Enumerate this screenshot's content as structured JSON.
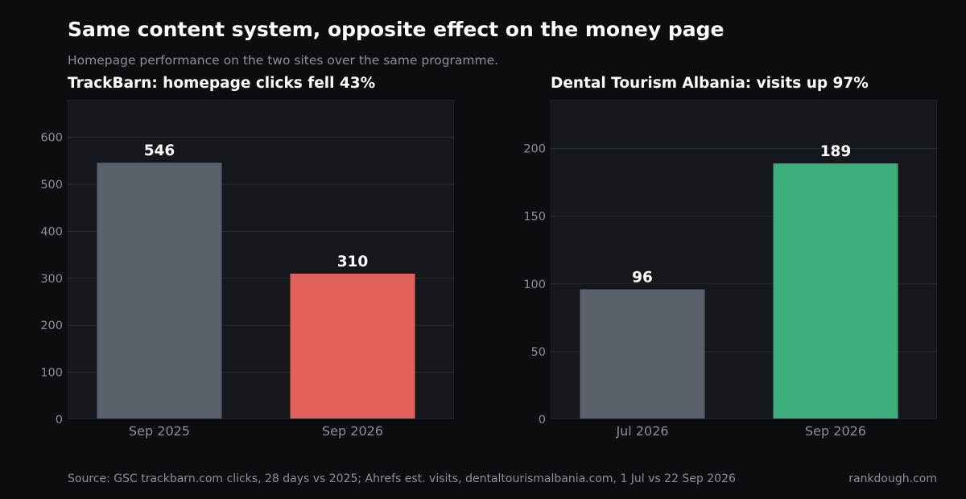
{
  "header": {
    "title": "Same content system, opposite effect on the money page",
    "subtitle": "Homepage performance on the two sites over the same programme."
  },
  "footer": {
    "source": "Source: GSC trackbarn.com clicks, 28 days vs 2025; Ahrefs est. visits, dentaltourismalbania.com, 1 Jul vs 22 Sep 2026",
    "brand": "rankdough.com"
  },
  "colors": {
    "background": "#0c0d10",
    "plot_bg": "#14171c",
    "grid": "#262a31",
    "neutral_bar": "#5a616b",
    "decline_bar": "#e0625b",
    "growth_bar": "#3eae7c",
    "tick_text": "#8b8f96",
    "label_text": "#ffffff"
  },
  "chart_data": [
    {
      "type": "bar",
      "title": "TrackBarn: homepage clicks fell 43%",
      "categories": [
        "Sep 2025",
        "Sep 2026"
      ],
      "values": [
        546,
        310
      ],
      "data_labels": [
        "546",
        "310"
      ],
      "bar_colors": [
        "#5a616b",
        "#e0625b"
      ],
      "ylim": [
        0,
        680
      ],
      "yticks": [
        0,
        100,
        200,
        300,
        400,
        500,
        600
      ],
      "xlabel": "",
      "ylabel": "",
      "grid": true
    },
    {
      "type": "bar",
      "title": "Dental Tourism Albania: visits up 97%",
      "categories": [
        "Jul 2026",
        "Sep 2026"
      ],
      "values": [
        96,
        189
      ],
      "data_labels": [
        "96",
        "189"
      ],
      "bar_colors": [
        "#5a616b",
        "#3eae7c"
      ],
      "ylim": [
        0,
        236
      ],
      "yticks": [
        0,
        50,
        100,
        150,
        200
      ],
      "xlabel": "",
      "ylabel": "",
      "grid": true
    }
  ]
}
